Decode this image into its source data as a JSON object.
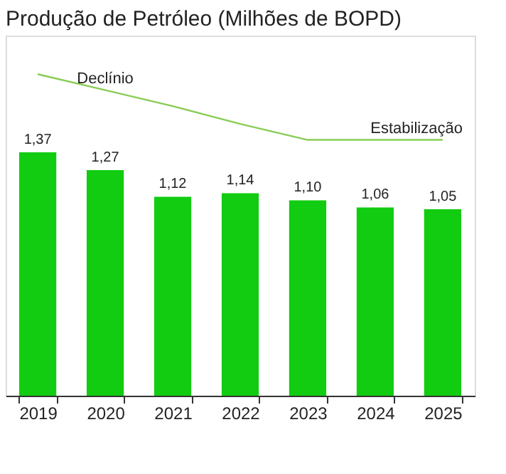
{
  "chart_data": {
    "type": "bar",
    "title": "Produção de Petróleo (Milhões de BOPD)",
    "categories": [
      "2019",
      "2020",
      "2021",
      "2022",
      "2023",
      "2024",
      "2025"
    ],
    "series": [
      {
        "color": "#11cc11",
        "values": [
          1.37,
          1.27,
          1.12,
          1.14,
          1.1,
          1.06,
          1.05
        ],
        "value_labels": [
          "1,37",
          "1,27",
          "1,12",
          "1,14",
          "1,10",
          "1,06",
          "1,05"
        ]
      },
      {
        "type": "line",
        "color": "#88cc55",
        "values": [
          1.81,
          1.72,
          1.63,
          1.53,
          1.44,
          1.44,
          1.44
        ]
      }
    ],
    "annotations": [
      "Declínio",
      "Estabilização"
    ]
  }
}
